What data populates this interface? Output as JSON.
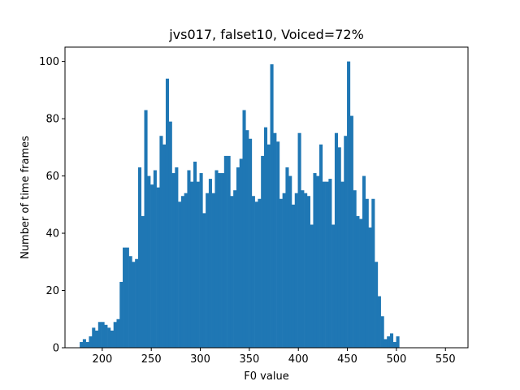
{
  "chart_data": {
    "type": "bar",
    "title": "jvs017, falset10, Voiced=72%",
    "xlabel": "F0 value",
    "ylabel": "Number of time frames",
    "xlim": [
      162,
      573
    ],
    "ylim": [
      0,
      105
    ],
    "x_ticks": [
      200,
      250,
      300,
      350,
      400,
      450,
      500,
      550
    ],
    "y_ticks": [
      0,
      20,
      40,
      60,
      80,
      100
    ],
    "grid": false,
    "bar_color": "#1f77b4",
    "bin_start": 177,
    "bin_width": 3.133,
    "values": [
      2,
      3,
      2,
      4,
      7,
      6,
      9,
      9,
      8,
      7,
      6,
      9,
      10,
      23,
      35,
      35,
      32,
      30,
      31,
      63,
      46,
      83,
      60,
      57,
      62,
      56,
      74,
      71,
      94,
      79,
      61,
      63,
      51,
      53,
      54,
      62,
      58,
      65,
      58,
      61,
      47,
      54,
      59,
      54,
      62,
      61,
      61,
      67,
      67,
      53,
      55,
      63,
      66,
      83,
      76,
      73,
      53,
      51,
      52,
      67,
      77,
      71,
      99,
      75,
      72,
      52,
      54,
      63,
      60,
      50,
      54,
      75,
      55,
      54,
      53,
      43,
      61,
      60,
      71,
      58,
      58,
      59,
      43,
      75,
      70,
      58,
      74,
      100,
      81,
      55,
      46,
      45,
      60,
      52,
      42,
      52,
      30,
      18,
      11,
      3,
      4,
      5,
      2,
      4
    ]
  }
}
